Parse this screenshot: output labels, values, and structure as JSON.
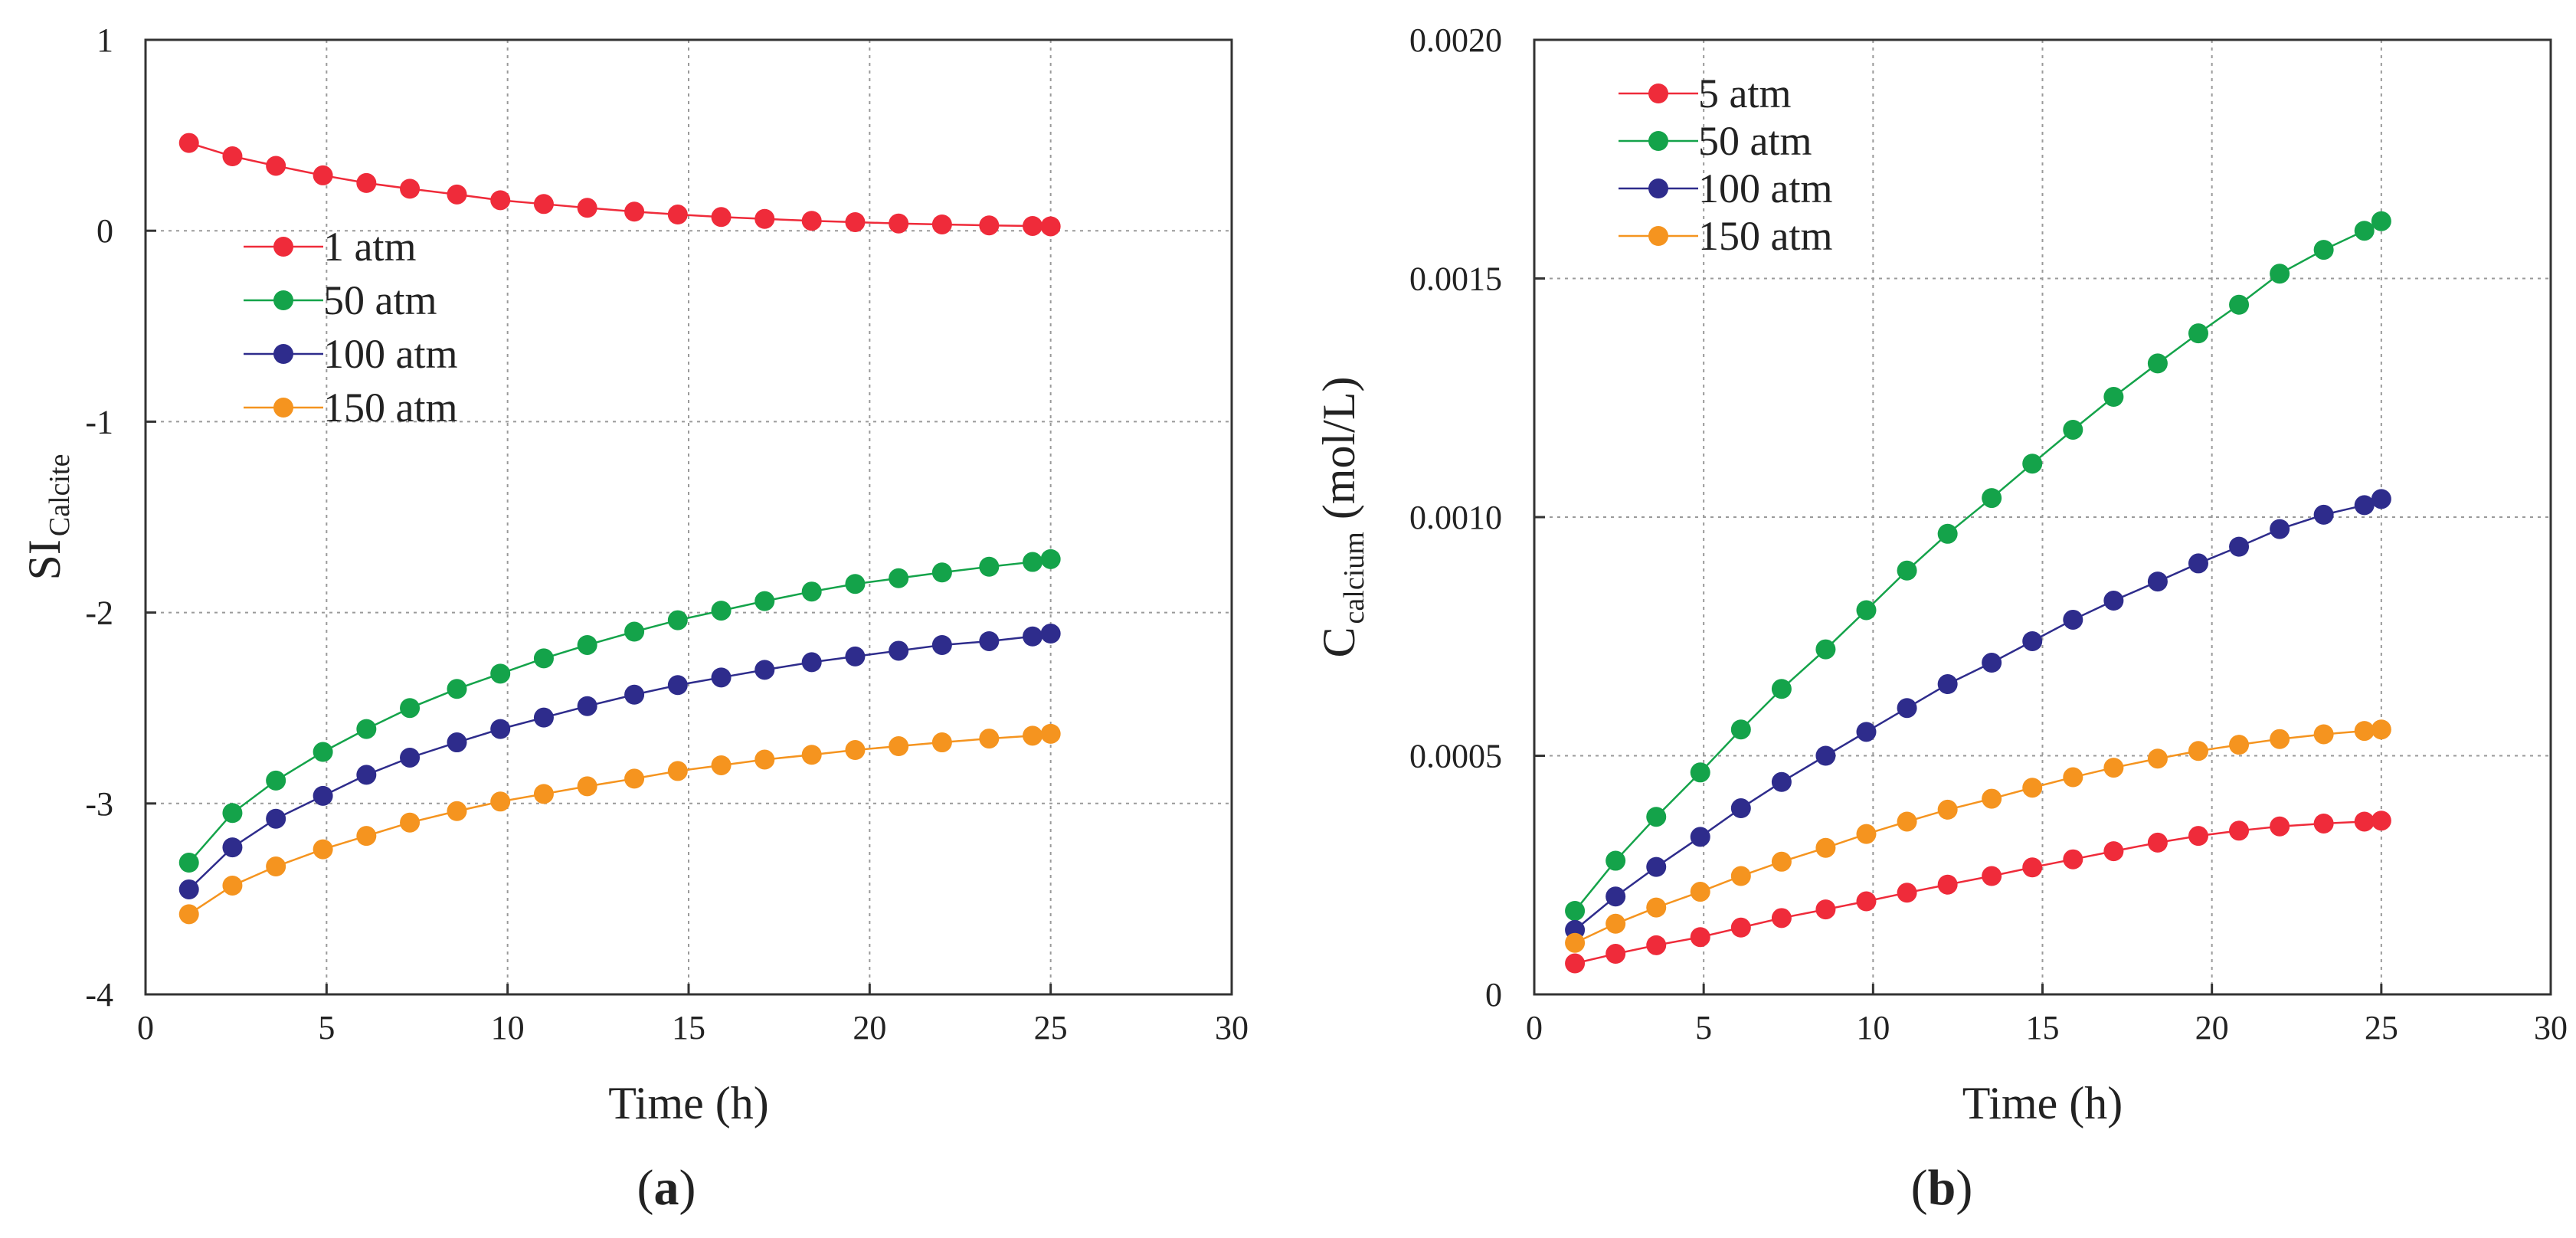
{
  "chart_data": [
    {
      "id": "a",
      "type": "line",
      "panel_label": "a",
      "xlabel": "Time (h)",
      "ylabel_main": "SI",
      "ylabel_sub": "Calcite",
      "xlim": [
        0,
        30
      ],
      "ylim": [
        -4,
        1
      ],
      "xticks": [
        0,
        5,
        10,
        15,
        20,
        25,
        30
      ],
      "yticks": [
        -4,
        -3,
        -2,
        -1,
        0,
        1
      ],
      "xtick_labels": [
        "0",
        "5",
        "10",
        "15",
        "20",
        "25",
        "30"
      ],
      "ytick_labels": [
        "-4",
        "-3",
        "-2",
        "-1",
        "0",
        "1"
      ],
      "grid": true,
      "legend_position": "upper-left",
      "x": [
        1.2,
        2.4,
        3.6,
        4.9,
        6.1,
        7.3,
        8.6,
        9.8,
        11.0,
        12.2,
        13.5,
        14.7,
        15.9,
        17.1,
        18.4,
        19.6,
        20.8,
        22.0,
        23.3,
        24.5,
        25.0
      ],
      "series": [
        {
          "name": "1 atm",
          "color": "#ef2b3a",
          "values": [
            0.46,
            0.39,
            0.34,
            0.29,
            0.25,
            0.22,
            0.19,
            0.16,
            0.14,
            0.12,
            0.1,
            0.085,
            0.072,
            0.062,
            0.052,
            0.045,
            0.038,
            0.033,
            0.028,
            0.025,
            0.023
          ]
        },
        {
          "name": "50 atm",
          "color": "#14a34a",
          "values": [
            -3.31,
            -3.05,
            -2.88,
            -2.73,
            -2.61,
            -2.5,
            -2.4,
            -2.32,
            -2.24,
            -2.17,
            -2.1,
            -2.04,
            -1.99,
            -1.94,
            -1.89,
            -1.85,
            -1.82,
            -1.79,
            -1.76,
            -1.735,
            -1.72
          ]
        },
        {
          "name": "100 atm",
          "color": "#2e2c8c",
          "values": [
            -3.45,
            -3.23,
            -3.08,
            -2.96,
            -2.85,
            -2.76,
            -2.68,
            -2.61,
            -2.55,
            -2.49,
            -2.43,
            -2.38,
            -2.34,
            -2.3,
            -2.26,
            -2.23,
            -2.2,
            -2.17,
            -2.15,
            -2.125,
            -2.11
          ]
        },
        {
          "name": "150 atm",
          "color": "#f5941f",
          "values": [
            -3.58,
            -3.43,
            -3.33,
            -3.24,
            -3.17,
            -3.1,
            -3.04,
            -2.99,
            -2.95,
            -2.91,
            -2.87,
            -2.83,
            -2.8,
            -2.77,
            -2.745,
            -2.72,
            -2.7,
            -2.68,
            -2.66,
            -2.645,
            -2.635
          ]
        }
      ]
    },
    {
      "id": "b",
      "type": "line",
      "panel_label": "b",
      "xlabel": "Time (h)",
      "ylabel_main": "C",
      "ylabel_sub": "calcium",
      "ylabel_unit": "(mol/L)",
      "xlim": [
        0,
        30
      ],
      "ylim": [
        0,
        0.002
      ],
      "xticks": [
        0,
        5,
        10,
        15,
        20,
        25,
        30
      ],
      "yticks": [
        0,
        0.0005,
        0.001,
        0.0015,
        0.002
      ],
      "xtick_labels": [
        "0",
        "5",
        "10",
        "15",
        "20",
        "25",
        "30"
      ],
      "ytick_labels": [
        "0",
        "0.0005",
        "0.0010",
        "0.0015",
        "0.0020"
      ],
      "grid": true,
      "legend_position": "upper-left",
      "x": [
        1.2,
        2.4,
        3.6,
        4.9,
        6.1,
        7.3,
        8.6,
        9.8,
        11.0,
        12.2,
        13.5,
        14.7,
        15.9,
        17.1,
        18.4,
        19.6,
        20.8,
        22.0,
        23.3,
        24.5,
        25.0
      ],
      "series": [
        {
          "name": "5 atm",
          "color": "#ef2b3a",
          "values": [
            6.5e-05,
            8.5e-05,
            0.000103,
            0.00012,
            0.00014,
            0.00016,
            0.000178,
            0.000195,
            0.000213,
            0.00023,
            0.000248,
            0.000266,
            0.000283,
            0.0003,
            0.000318,
            0.000332,
            0.000343,
            0.000352,
            0.000358,
            0.000362,
            0.000364
          ]
        },
        {
          "name": "50 atm",
          "color": "#14a34a",
          "values": [
            0.000175,
            0.00028,
            0.000372,
            0.000465,
            0.000555,
            0.00064,
            0.000723,
            0.000805,
            0.000888,
            0.000965,
            0.00104,
            0.001112,
            0.001183,
            0.001252,
            0.001322,
            0.001385,
            0.001445,
            0.00151,
            0.00156,
            0.0016,
            0.00162
          ]
        },
        {
          "name": "100 atm",
          "color": "#2e2c8c",
          "values": [
            0.000135,
            0.000205,
            0.000267,
            0.00033,
            0.00039,
            0.000445,
            0.0005,
            0.00055,
            0.0006,
            0.00065,
            0.000695,
            0.00074,
            0.000785,
            0.000825,
            0.000865,
            0.000903,
            0.000938,
            0.000975,
            0.001005,
            0.001025,
            0.001038
          ]
        },
        {
          "name": "150 atm",
          "color": "#f5941f",
          "values": [
            0.000108,
            0.000148,
            0.000182,
            0.000215,
            0.000248,
            0.000278,
            0.000307,
            0.000336,
            0.000362,
            0.000387,
            0.00041,
            0.000433,
            0.000455,
            0.000475,
            0.000494,
            0.00051,
            0.000523,
            0.000535,
            0.000545,
            0.000552,
            0.000555
          ]
        }
      ]
    }
  ]
}
